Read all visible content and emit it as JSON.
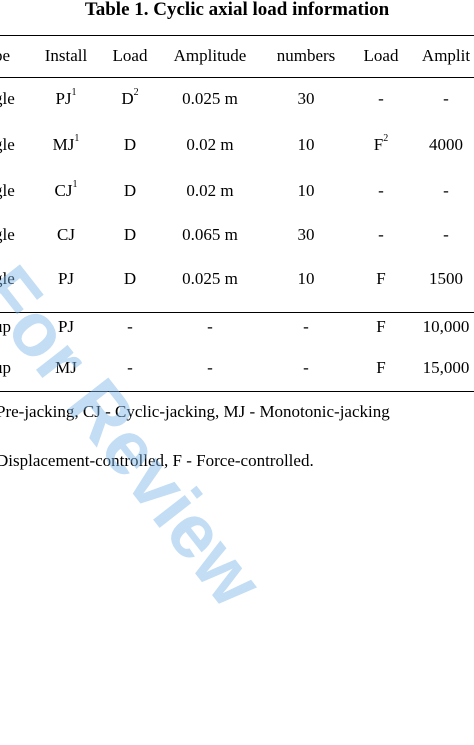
{
  "table": {
    "title": "Table 1. Cyclic axial load information",
    "headers": [
      "pe",
      "Install",
      "Load",
      "Amplitude",
      "numbers",
      "Load",
      "Amplit"
    ],
    "rows": [
      {
        "type": "gle",
        "install": "PJ",
        "install_sup": "1",
        "load": "D",
        "load_sup": "2",
        "amplitude": "0.025 m",
        "numbers": "30",
        "load2": "-",
        "load2_sup": "",
        "amplitude2": "-"
      },
      {
        "type": "gle",
        "install": "MJ",
        "install_sup": "1",
        "load": "D",
        "load_sup": "",
        "amplitude": "0.02 m",
        "numbers": "10",
        "load2": "F",
        "load2_sup": "2",
        "amplitude2": "4000"
      },
      {
        "type": "gle",
        "install": "CJ",
        "install_sup": "1",
        "load": "D",
        "load_sup": "",
        "amplitude": "0.02 m",
        "numbers": "10",
        "load2": "-",
        "load2_sup": "",
        "amplitude2": "-"
      },
      {
        "type": "gle",
        "install": "CJ",
        "install_sup": "",
        "load": "D",
        "load_sup": "",
        "amplitude": "0.065 m",
        "numbers": "30",
        "load2": "-",
        "load2_sup": "",
        "amplitude2": "-"
      },
      {
        "type": "gle",
        "install": "PJ",
        "install_sup": "",
        "load": "D",
        "load_sup": "",
        "amplitude": "0.025 m",
        "numbers": "10",
        "load2": "F",
        "load2_sup": "",
        "amplitude2": "1500"
      },
      {
        "type": "up",
        "install": "PJ",
        "install_sup": "",
        "load": "-",
        "load_sup": "",
        "amplitude": "-",
        "numbers": "-",
        "load2": "F",
        "load2_sup": "",
        "amplitude2": "10,000"
      },
      {
        "type": "up",
        "install": "MJ",
        "install_sup": "",
        "load": "-",
        "load_sup": "",
        "amplitude": "-",
        "numbers": "-",
        "load2": "F",
        "load2_sup": "",
        "amplitude2": "15,000"
      }
    ]
  },
  "notes": [
    "Pre-jacking, CJ - Cyclic-jacking, MJ - Monotonic-jacking",
    "Displacement-controlled, F - Force-controlled."
  ],
  "watermark": "For Review"
}
